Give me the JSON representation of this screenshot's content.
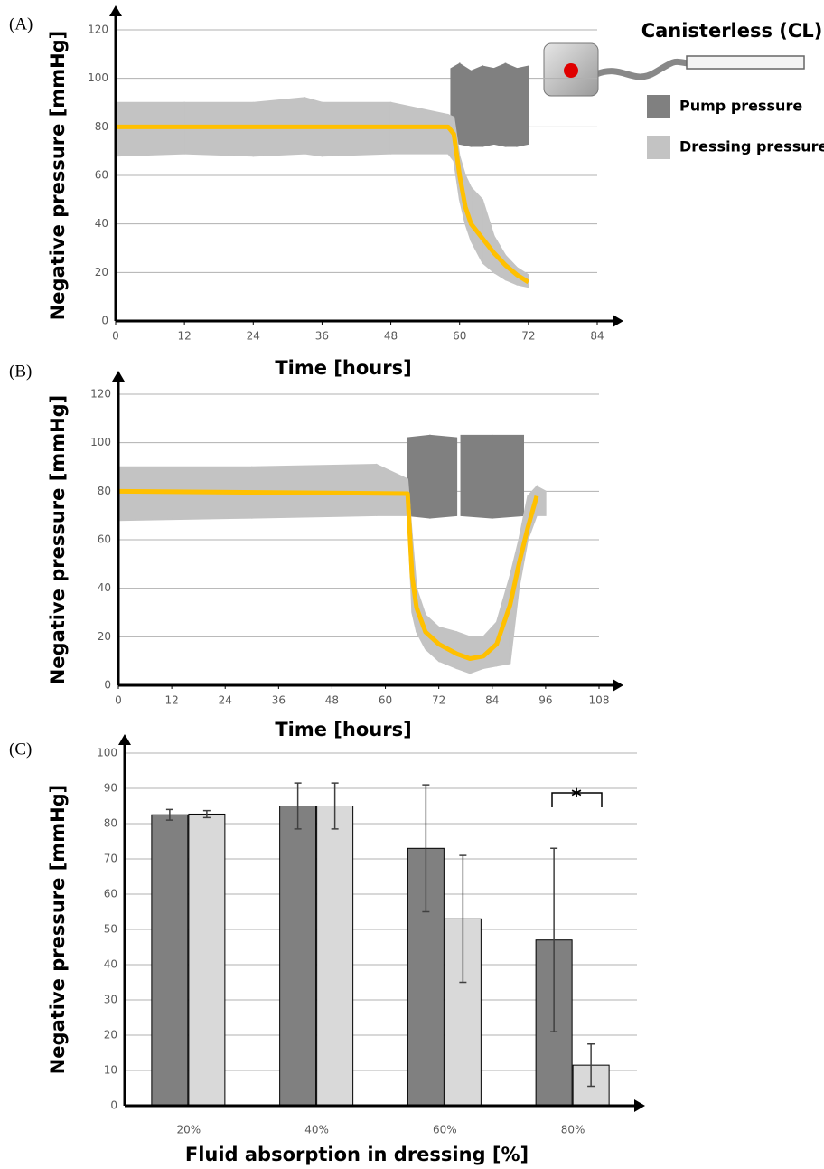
{
  "chart_data": [
    {
      "type": "range-line",
      "label": "(A)",
      "title": "Canisterless (CL)",
      "x_label": "Time [hours]",
      "y_label": "Negative pressure [mmHg]",
      "xlim": [
        0,
        84
      ],
      "xticks": [
        0,
        12,
        24,
        36,
        48,
        60,
        72,
        84
      ],
      "ylim": [
        0,
        120
      ],
      "yticks": [
        0,
        20,
        40,
        60,
        80,
        100,
        120
      ],
      "grid": true,
      "series": [
        {
          "name": "Pump pressure",
          "color": "#808080",
          "x": [
            58.5,
            60,
            62,
            64,
            66,
            68,
            70,
            72
          ],
          "low": [
            74,
            73,
            72,
            72,
            73,
            72,
            72,
            73
          ],
          "high": [
            104,
            106,
            103,
            105,
            104,
            106,
            104,
            105
          ]
        },
        {
          "name": "Dressing pressure",
          "color": "#c3c3c3",
          "x": [
            0,
            12,
            24,
            33,
            36,
            48,
            58,
            59,
            60,
            61,
            62,
            64,
            66,
            68,
            70,
            72
          ],
          "low": [
            68,
            69,
            68,
            69,
            68,
            69,
            69,
            66,
            50,
            40,
            33,
            24,
            20,
            17,
            15,
            14
          ],
          "high": [
            90,
            90,
            90,
            92,
            90,
            90,
            85,
            84,
            68,
            60,
            55,
            50,
            35,
            27,
            22,
            19
          ]
        },
        {
          "color": "#ffc000",
          "x": [
            0,
            58,
            59,
            60,
            61,
            62,
            64,
            66,
            68,
            70,
            72
          ],
          "values": [
            80,
            80,
            77,
            60,
            47,
            40,
            34,
            28,
            23,
            19,
            16
          ]
        }
      ]
    },
    {
      "type": "range-line",
      "label": "(B)",
      "x_label": "Time [hours]",
      "y_label": "Negative pressure [mmHg]",
      "xlim": [
        0,
        108
      ],
      "xticks": [
        0,
        12,
        24,
        36,
        48,
        60,
        72,
        84,
        96,
        108
      ],
      "ylim": [
        0,
        120
      ],
      "yticks": [
        0,
        20,
        40,
        60,
        80,
        100,
        120
      ],
      "grid": true,
      "series": [
        {
          "color": "#808080",
          "x": [
            65,
            70,
            76,
            76.5,
            77,
            84,
            91
          ],
          "low": [
            70,
            69,
            70,
            null,
            70,
            69,
            70
          ],
          "high": [
            102,
            103,
            102,
            null,
            103,
            103,
            103
          ]
        },
        {
          "color": "#c3c3c3",
          "x": [
            0,
            30,
            58,
            65,
            66,
            67,
            69,
            72,
            76,
            79,
            82,
            85,
            88,
            90,
            92,
            94,
            96
          ],
          "low": [
            68,
            69,
            70,
            70,
            30,
            22,
            15,
            10,
            7,
            5,
            7,
            8,
            9,
            40,
            60,
            70,
            70
          ],
          "high": [
            90,
            90,
            91,
            85,
            62,
            40,
            29,
            24,
            22,
            20,
            20,
            26,
            45,
            60,
            78,
            82,
            80
          ]
        },
        {
          "color": "#ffc000",
          "x": [
            0,
            65,
            66,
            67,
            69,
            72,
            76,
            79,
            82,
            85,
            88,
            90,
            92,
            94
          ],
          "values": [
            80,
            79,
            45,
            32,
            22,
            17,
            13,
            11,
            12,
            17,
            33,
            50,
            65,
            78
          ]
        }
      ]
    },
    {
      "type": "grouped-bar",
      "label": "(C)",
      "x_label": "Fluid absorption in dressing [%]",
      "y_label": "Negative pressure [mmHg]",
      "categories": [
        "20%",
        "40%",
        "60%",
        "80%"
      ],
      "ylim": [
        0,
        100
      ],
      "yticks": [
        0,
        10,
        20,
        30,
        40,
        50,
        60,
        70,
        80,
        90,
        100
      ],
      "grid": true,
      "annotation": "*",
      "series": [
        {
          "color": "#808080",
          "values": [
            82.5,
            85,
            73,
            47
          ],
          "errors": [
            1.5,
            6.5,
            18,
            26
          ]
        },
        {
          "color": "#d9d9d9",
          "values": [
            82.7,
            85,
            53,
            11.5
          ],
          "errors": [
            1,
            6.5,
            18,
            6
          ]
        }
      ]
    }
  ]
}
